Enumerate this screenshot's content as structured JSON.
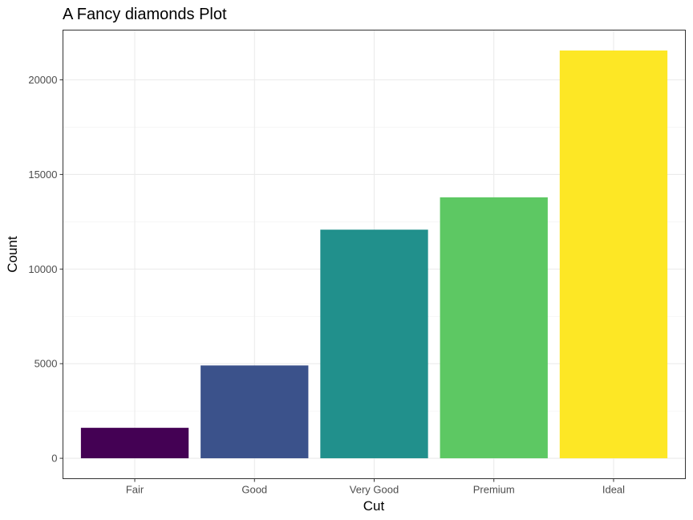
{
  "chart_data": {
    "type": "bar",
    "title": "A Fancy diamonds Plot",
    "xlabel": "Cut",
    "ylabel": "Count",
    "categories": [
      "Fair",
      "Good",
      "Very Good",
      "Premium",
      "Ideal"
    ],
    "values": [
      1610,
      4906,
      12082,
      13791,
      21551
    ],
    "colors": [
      "#440154",
      "#3B528B",
      "#21908C",
      "#5DC863",
      "#FDE725"
    ],
    "ylim": [
      -1078,
      22629
    ],
    "yticks": [
      0,
      5000,
      10000,
      15000,
      20000
    ],
    "ytick_labels": [
      "0",
      "5000",
      "10000",
      "15000",
      "20000"
    ],
    "grid": true,
    "legend": "none"
  }
}
